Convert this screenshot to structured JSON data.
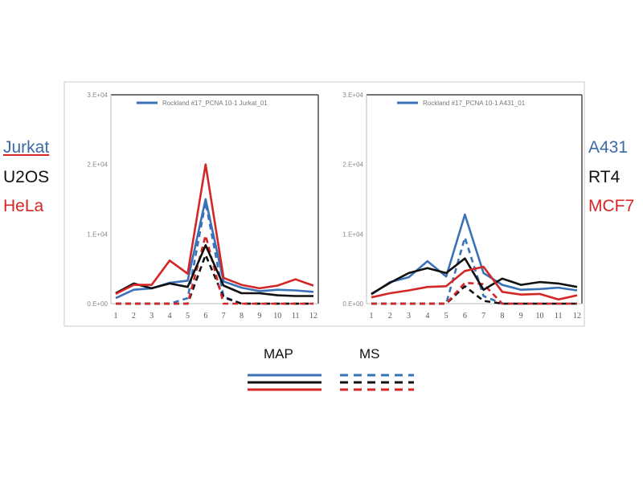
{
  "side_labels": {
    "left": [
      "Jurkat",
      "U2OS",
      "HeLa"
    ],
    "right": [
      "A431",
      "RT4",
      "MCF7"
    ]
  },
  "colors": {
    "blue": "#3a72b8",
    "black": "#111111",
    "red": "#d42626"
  },
  "key": {
    "map_label": "MAP",
    "ms_label": "MS",
    "series_colors": [
      "blue",
      "black",
      "red"
    ]
  },
  "chart_data": [
    {
      "type": "line",
      "legend_text": "Rockland #17_PCNA 10-1 Jurkat_01",
      "legend_position": "top",
      "x": [
        1,
        2,
        3,
        4,
        5,
        6,
        7,
        8,
        9,
        10,
        11,
        12
      ],
      "x_tick_labels": [
        "1",
        "2",
        "3",
        "4",
        "5",
        "6",
        "7",
        "8",
        "9",
        "10",
        "11",
        "12"
      ],
      "y_tick_labels": [
        "0.E+00",
        "1.E+04",
        "2.E+04",
        "3.E+04"
      ],
      "ylim": [
        0,
        30000
      ],
      "grid": false,
      "series": [
        {
          "cell": "Jurkat",
          "color": "blue",
          "style": "solid",
          "values": [
            800,
            2000,
            2200,
            3000,
            3300,
            15000,
            3200,
            2300,
            1800,
            2000,
            1900,
            1700
          ]
        },
        {
          "cell": "U2OS",
          "color": "black",
          "style": "solid",
          "values": [
            1500,
            2900,
            2200,
            2900,
            2400,
            8400,
            2600,
            1500,
            1500,
            1200,
            1100,
            1100
          ]
        },
        {
          "cell": "HeLa",
          "color": "red",
          "style": "solid",
          "values": [
            1400,
            2700,
            2700,
            6200,
            4300,
            20000,
            3700,
            2700,
            2200,
            2600,
            3500,
            2600
          ]
        },
        {
          "cell": "Jurkat",
          "color": "blue",
          "style": "dashed",
          "values": [
            0,
            0,
            0,
            0,
            800,
            14600,
            1000,
            0,
            0,
            0,
            0,
            0
          ]
        },
        {
          "cell": "U2OS",
          "color": "black",
          "style": "dashed",
          "values": [
            0,
            0,
            0,
            0,
            0,
            7000,
            900,
            0,
            0,
            0,
            0,
            0
          ]
        },
        {
          "cell": "HeLa",
          "color": "red",
          "style": "dashed",
          "values": [
            0,
            0,
            0,
            0,
            0,
            9800,
            0,
            0,
            0,
            0,
            0,
            0
          ]
        }
      ]
    },
    {
      "type": "line",
      "legend_text": "Rockland #17_PCNA 10-1 A431_01",
      "legend_position": "top",
      "x": [
        1,
        2,
        3,
        4,
        5,
        6,
        7,
        8,
        9,
        10,
        11,
        12
      ],
      "x_tick_labels": [
        "1",
        "2",
        "3",
        "4",
        "5",
        "6",
        "7",
        "8",
        "9",
        "10",
        "11",
        "12"
      ],
      "y_tick_labels": [
        "0.E+00",
        "1.E+04",
        "2.E+04",
        "3.E+04"
      ],
      "ylim": [
        0,
        30000
      ],
      "grid": false,
      "series": [
        {
          "cell": "A431",
          "color": "blue",
          "style": "solid",
          "values": [
            1300,
            3100,
            3800,
            6100,
            3900,
            12800,
            4400,
            2700,
            2000,
            2100,
            2300,
            1900
          ]
        },
        {
          "cell": "RT4",
          "color": "black",
          "style": "solid",
          "values": [
            1400,
            3000,
            4400,
            5100,
            4400,
            6500,
            2000,
            3600,
            2700,
            3100,
            2900,
            2400
          ]
        },
        {
          "cell": "MCF7",
          "color": "red",
          "style": "solid",
          "values": [
            900,
            1500,
            1900,
            2400,
            2500,
            4700,
            5300,
            1700,
            1300,
            1400,
            600,
            1200
          ]
        },
        {
          "cell": "A431",
          "color": "blue",
          "style": "dashed",
          "values": [
            0,
            0,
            0,
            0,
            0,
            9500,
            1100,
            0,
            0,
            0,
            0,
            0
          ]
        },
        {
          "cell": "RT4",
          "color": "black",
          "style": "dashed",
          "values": [
            0,
            0,
            0,
            0,
            0,
            2500,
            400,
            0,
            0,
            0,
            0,
            0
          ]
        },
        {
          "cell": "MCF7",
          "color": "red",
          "style": "dashed",
          "values": [
            0,
            0,
            0,
            0,
            0,
            3000,
            2800,
            0,
            0,
            0,
            0,
            0
          ]
        }
      ]
    }
  ]
}
